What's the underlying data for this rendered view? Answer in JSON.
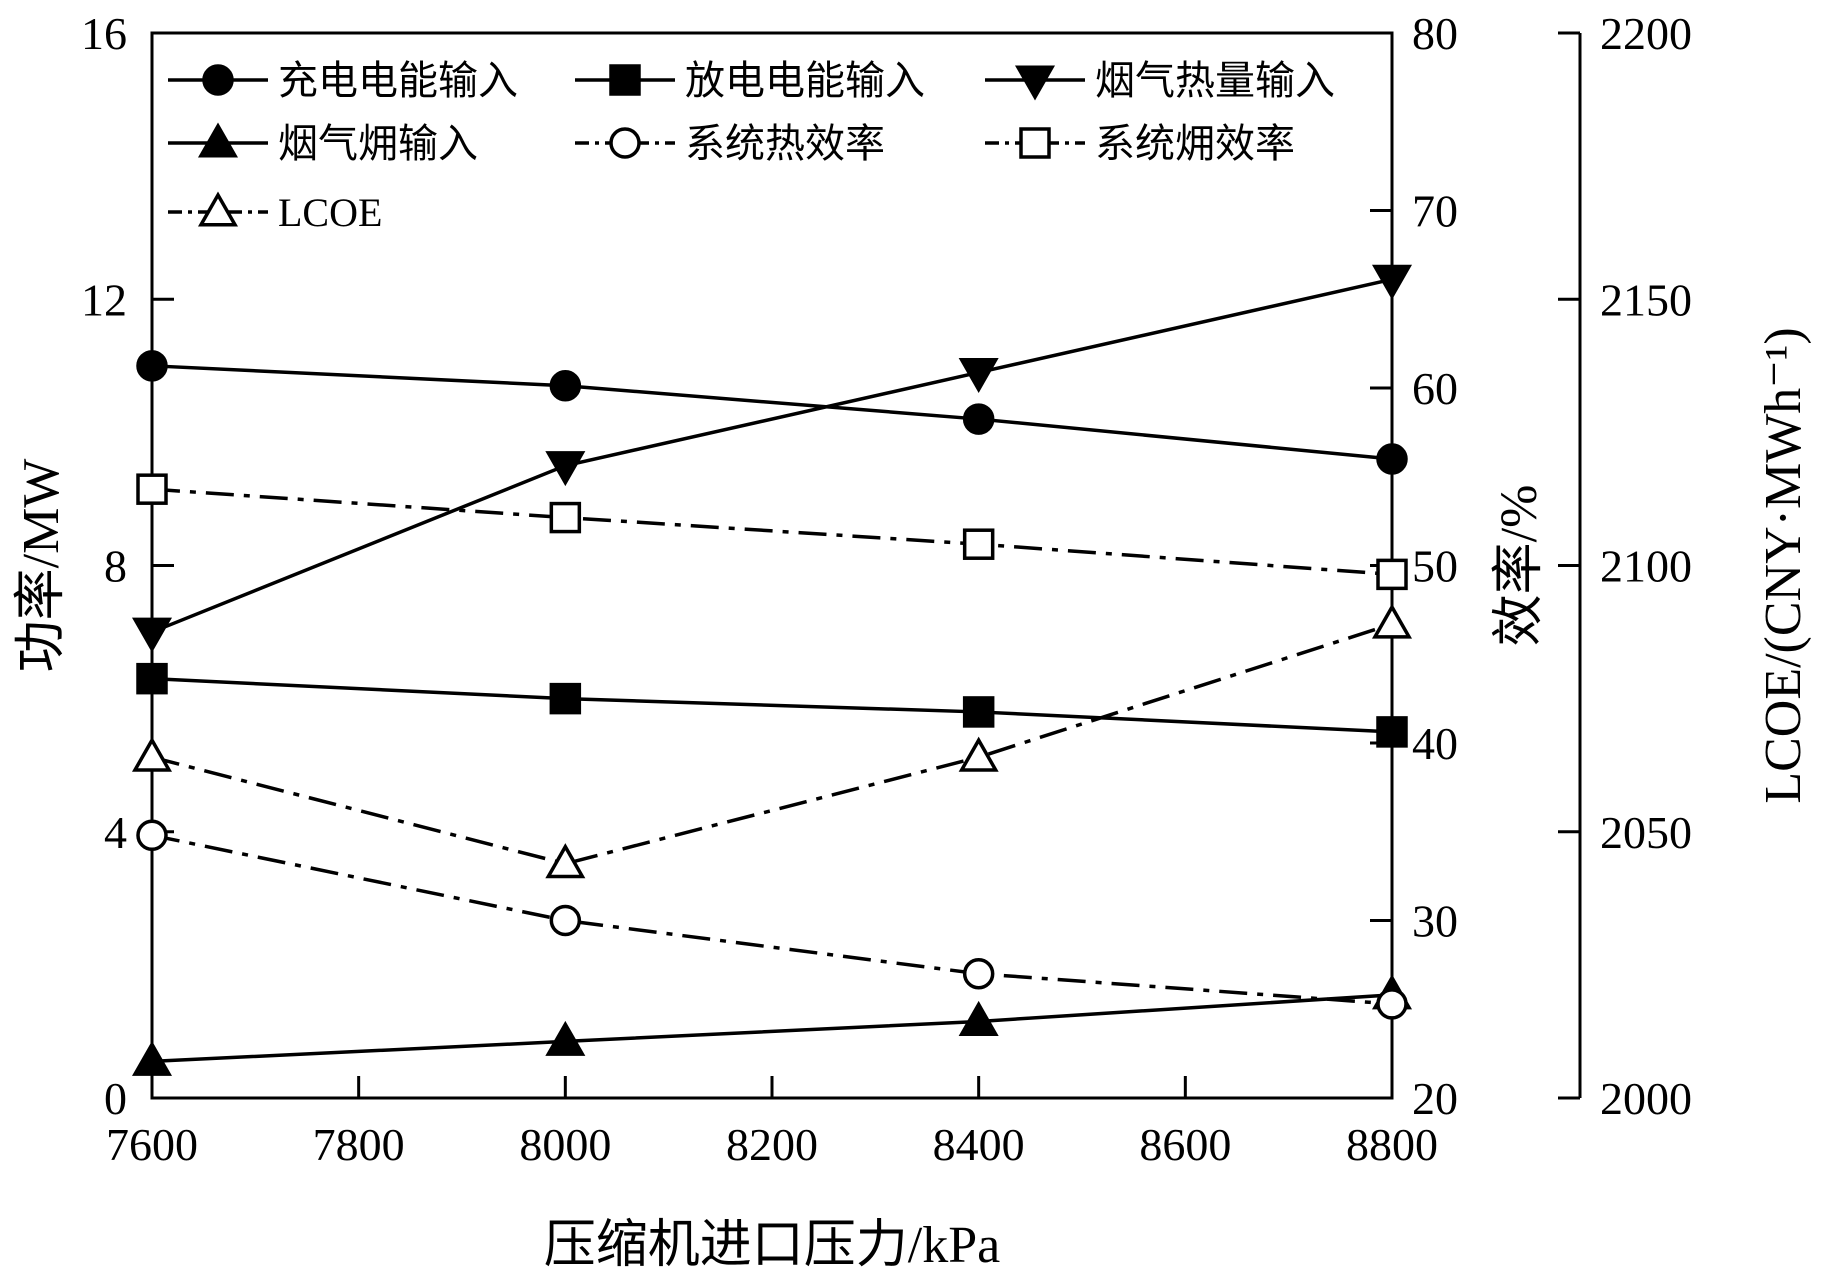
{
  "chart_data": {
    "type": "line",
    "x": [
      7600,
      8000,
      8400,
      8800
    ],
    "xlabel": "压缩机进口压力/kPa",
    "xlim": [
      7600,
      8800
    ],
    "xticks": [
      "7600",
      "7800",
      "8000",
      "8200",
      "8400",
      "8600",
      "8800"
    ],
    "y_axes": {
      "left": {
        "label": "功率/MW",
        "lim": [
          0,
          16
        ],
        "ticks": [
          "0",
          "4",
          "8",
          "12",
          "16"
        ]
      },
      "right1": {
        "label": "效率/%",
        "lim": [
          20,
          80
        ],
        "ticks": [
          "20",
          "30",
          "40",
          "50",
          "60",
          "70",
          "80"
        ]
      },
      "right2": {
        "label": "LCOE/(CNY·MWh⁻¹)",
        "lim": [
          2000,
          2200
        ],
        "ticks": [
          "2000",
          "2050",
          "2100",
          "2150",
          "2200"
        ]
      }
    },
    "grid": false,
    "legend_position": "top",
    "series": [
      {
        "name": "充电电能输入",
        "axis": "left",
        "values": [
          11.0,
          10.7,
          10.2,
          9.6
        ],
        "marker": "circle-filled",
        "line": "solid"
      },
      {
        "name": "放电电能输入",
        "axis": "left",
        "values": [
          6.3,
          6.0,
          5.8,
          5.5
        ],
        "marker": "square-filled",
        "line": "solid"
      },
      {
        "name": "烟气热量输入",
        "axis": "left",
        "values": [
          7.0,
          9.5,
          10.9,
          12.3
        ],
        "marker": "triangle-down-filled",
        "line": "solid"
      },
      {
        "name": "烟气㶲输入",
        "axis": "left",
        "values": [
          0.55,
          0.85,
          1.15,
          1.55
        ],
        "marker": "triangle-up-filled",
        "line": "solid"
      },
      {
        "name": "系统热效率",
        "axis": "right1",
        "values": [
          34.8,
          30.0,
          27.0,
          25.3
        ],
        "marker": "circle-open",
        "line": "dashdot"
      },
      {
        "name": "系统㶲效率",
        "axis": "right1",
        "values": [
          54.3,
          52.7,
          51.2,
          49.5
        ],
        "marker": "square-open",
        "line": "dashdot"
      },
      {
        "name": "LCOE",
        "axis": "right2",
        "values": [
          2064,
          2044,
          2064,
          2089
        ],
        "marker": "triangle-up-open",
        "line": "dashdot"
      }
    ]
  }
}
